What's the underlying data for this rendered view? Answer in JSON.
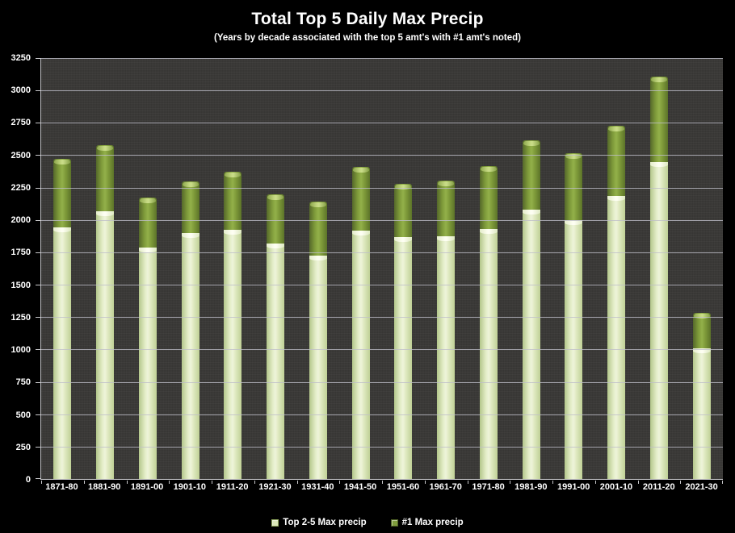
{
  "page": {
    "title": "Total Top 5 Daily Max Precip",
    "subtitle": "(Years by decade associated with the top 5 amt's with #1 amt's noted)"
  },
  "legend": {
    "items": [
      {
        "label": "Top 2-5 Max precip",
        "color": "#dce8ba",
        "border": "#8fa65c"
      },
      {
        "label": "#1 Max precip",
        "color": "#7f9c3d",
        "border": "#4d5f24"
      }
    ]
  },
  "chart_data": {
    "type": "bar",
    "stacked": true,
    "title": "Total Top 5 Daily Max Precip",
    "subtitle": "(Years by decade associated with the top 5 amt's with #1 amt's noted)",
    "categories": [
      "1871-80",
      "1881-90",
      "1891-00",
      "1901-10",
      "1911-20",
      "1921-30",
      "1931-40",
      "1941-50",
      "1951-60",
      "1961-70",
      "1971-80",
      "1981-90",
      "1991-00",
      "2001-10",
      "2011-20",
      "2021-30"
    ],
    "series": [
      {
        "name": "Top 2-5 Max precip",
        "color": "#dce8ba",
        "values": [
          1945,
          2070,
          1790,
          1900,
          1925,
          1820,
          1725,
          1920,
          1865,
          1875,
          1930,
          2080,
          2000,
          2185,
          2445,
          1010
        ]
      },
      {
        "name": "#1 Max precip",
        "color": "#7f9c3d",
        "values": [
          525,
          505,
          380,
          395,
          450,
          375,
          420,
          490,
          415,
          430,
          485,
          535,
          515,
          540,
          665,
          270
        ]
      }
    ],
    "stack_totals": [
      2470,
      2575,
      2170,
      2295,
      2375,
      2195,
      2145,
      2410,
      2280,
      2305,
      2415,
      2615,
      2515,
      2725,
      3110,
      1280
    ],
    "xlabel": "",
    "ylabel": "",
    "ylim": [
      0,
      3250
    ],
    "yticks": [
      0,
      250,
      500,
      750,
      1000,
      1250,
      1500,
      1750,
      2000,
      2250,
      2500,
      2750,
      3000,
      3250
    ],
    "grid": true,
    "legend_position": "bottom",
    "colors": {
      "page_bg": "#000000",
      "plot_bg": "#3b3a38",
      "gridline": "#bebec8",
      "axis": "#c9c9cc",
      "text": "#ffffff"
    }
  }
}
